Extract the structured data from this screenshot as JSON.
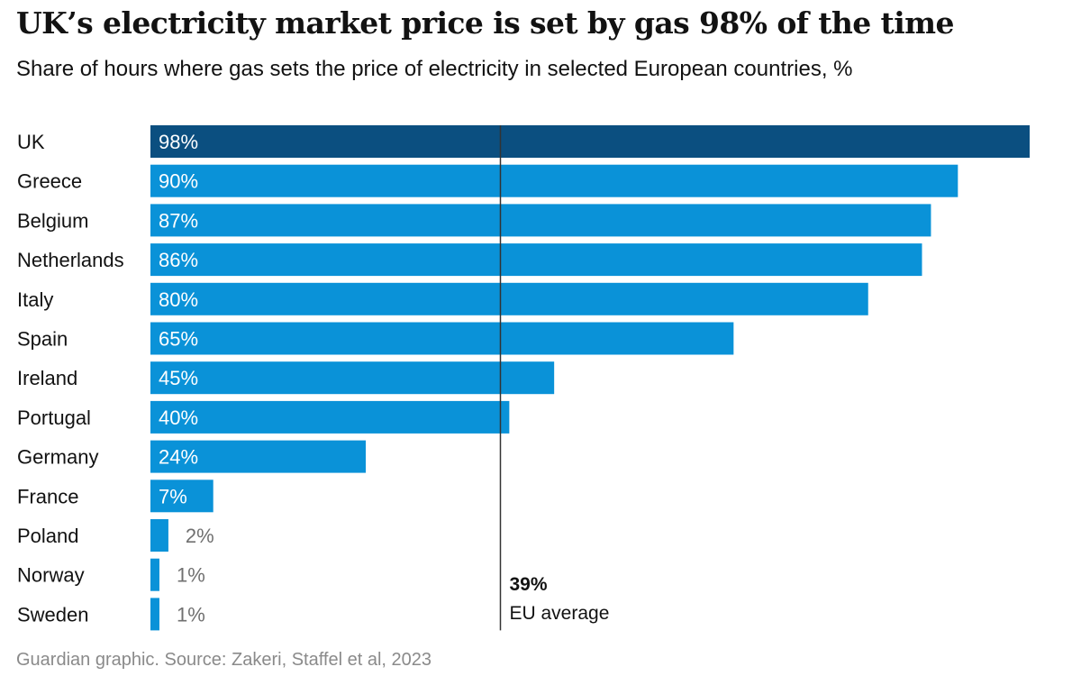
{
  "chart_data": {
    "type": "bar",
    "orientation": "horizontal",
    "title": "UK’s electricity market price is set by gas 98% of the time",
    "subtitle": "Share of hours where gas sets the price of electricity in selected European countries, %",
    "categories": [
      "UK",
      "Greece",
      "Belgium",
      "Netherlands",
      "Italy",
      "Spain",
      "Ireland",
      "Portugal",
      "Germany",
      "France",
      "Poland",
      "Norway",
      "Sweden"
    ],
    "values": [
      98,
      90,
      87,
      86,
      80,
      65,
      45,
      40,
      24,
      7,
      2,
      1,
      1
    ],
    "value_labels": [
      "98%",
      "90%",
      "87%",
      "86%",
      "80%",
      "65%",
      "45%",
      "40%",
      "24%",
      "7%",
      "2%",
      "1%",
      "1%"
    ],
    "highlight_category": "UK",
    "xlim": [
      0,
      98
    ],
    "reference_line": {
      "value": 39,
      "value_label": "39%",
      "label": "EU average"
    },
    "colors": {
      "highlight": "#0b4f80",
      "bar": "#0a92d8",
      "reference_line": "#333333"
    },
    "source": "Guardian graphic. Source: Zakeri, Staffel et al, 2023"
  }
}
